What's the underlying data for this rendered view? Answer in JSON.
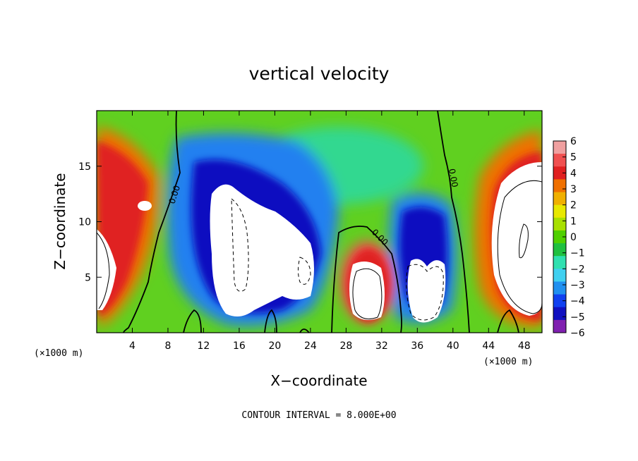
{
  "chart_data": {
    "type": "heatmap",
    "title": "vertical velocity",
    "xlabel": "X−coordinate",
    "ylabel": "Z−coordinate",
    "x_unit": "(×1000 m)",
    "x_ticks": [
      4,
      8,
      12,
      16,
      20,
      24,
      28,
      32,
      36,
      40,
      44,
      48
    ],
    "y_ticks": [
      5,
      10,
      15
    ],
    "xlim": [
      0,
      50
    ],
    "ylim": [
      0,
      20
    ],
    "colorbar": {
      "ticks": [
        6,
        5,
        4,
        3,
        2,
        1,
        0,
        -1,
        -2,
        -3,
        -4,
        -5,
        -6
      ],
      "tick_labels": [
        "6",
        "5",
        "4",
        "3",
        "2",
        "1",
        "0",
        "−1",
        "−2",
        "−3",
        "−4",
        "−5",
        "−6"
      ],
      "colors": [
        "#f0a0a0",
        "#f05050",
        "#e02020",
        "#f07000",
        "#f0b000",
        "#e8e800",
        "#a8e000",
        "#50d000",
        "#20c040",
        "#30e0b0",
        "#40d0f0",
        "#2090f0",
        "#1040f0",
        "#1010c0",
        "#8020b0"
      ]
    },
    "contour_interval": "CONTOUR INTERVAL = 8.000E+00",
    "contour_labels": [
      "0.00",
      "0.00",
      "0.00"
    ]
  }
}
